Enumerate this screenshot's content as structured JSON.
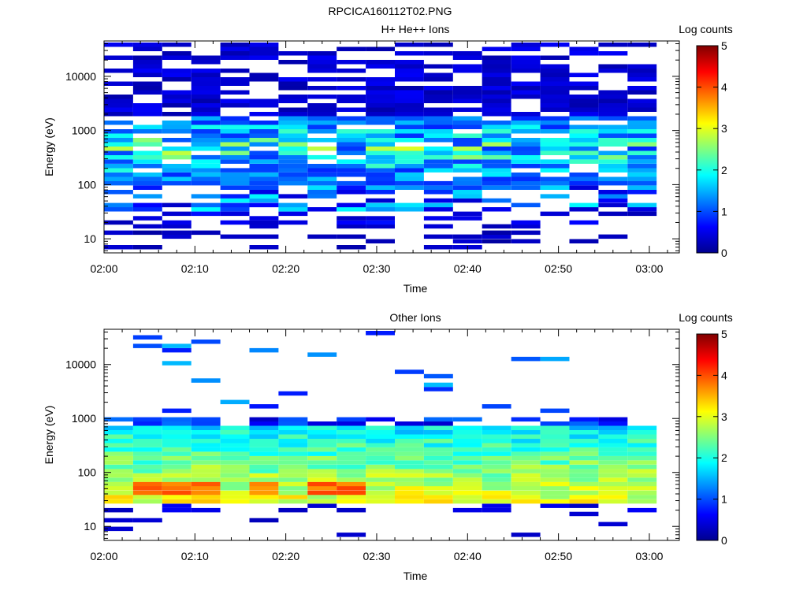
{
  "page_title": "RPCICA160112T02.PNG",
  "colors": {
    "colormap": [
      "#00008f",
      "#0000ff",
      "#00ffff",
      "#ffff00",
      "#ff0000",
      "#800000"
    ],
    "axis": "#000000",
    "background": "#ffffff"
  },
  "chart_data": [
    {
      "type": "heatmap",
      "title": "H+ He++ Ions",
      "xlabel": "Time",
      "ylabel": "Energy (eV)",
      "yscale": "log",
      "ylim": [
        5.5,
        45000
      ],
      "xticks": [
        "02:00",
        "02:10",
        "02:20",
        "02:30",
        "02:40",
        "02:50",
        "03:00"
      ],
      "xtick_minutes": [
        0,
        10,
        20,
        30,
        40,
        50,
        60
      ],
      "xlim_minutes": [
        0,
        63.3
      ],
      "yticks": [
        {
          "value": 10,
          "label": "10"
        },
        {
          "value": 100,
          "label": "100"
        },
        {
          "value": 1000,
          "label": "1000"
        },
        {
          "value": 10000,
          "label": "10000"
        }
      ],
      "colorbar": {
        "label": "Log counts",
        "min": 0,
        "max": 5,
        "ticks": [
          "0",
          "1",
          "2",
          "3",
          "4",
          "5"
        ]
      },
      "columns_start_minutes": [
        0,
        3.2,
        6.4,
        9.6,
        12.8,
        16.0,
        19.2,
        22.4,
        25.6,
        28.8,
        32.0,
        35.2,
        38.4,
        41.6,
        44.8,
        48.0,
        51.2,
        54.4,
        57.6
      ],
      "column_width_minutes": 3.2,
      "energy_bins_eV": [
        7,
        9,
        11,
        13,
        17,
        20,
        24,
        29,
        35,
        42,
        51,
        61,
        73,
        88,
        106,
        127,
        153,
        184,
        221,
        266,
        320,
        384,
        462,
        555,
        668,
        803,
        965,
        1160,
        1395,
        1677,
        2016,
        2424,
        2914,
        3503,
        4211,
        5062,
        6086,
        7316,
        8795,
        10573,
        12710,
        15279,
        18368,
        22081,
        26545,
        31911,
        38361
      ],
      "bin_half_width_log10": 0.04,
      "seed": 7,
      "profile": "hplus"
    },
    {
      "type": "heatmap",
      "title": "Other Ions",
      "xlabel": "Time",
      "ylabel": "Energy (eV)",
      "yscale": "log",
      "ylim": [
        5.5,
        45000
      ],
      "xticks": [
        "02:00",
        "02:10",
        "02:20",
        "02:30",
        "02:40",
        "02:50",
        "03:00"
      ],
      "xtick_minutes": [
        0,
        10,
        20,
        30,
        40,
        50,
        60
      ],
      "xlim_minutes": [
        0,
        63.3
      ],
      "yticks": [
        {
          "value": 10,
          "label": "10"
        },
        {
          "value": 100,
          "label": "100"
        },
        {
          "value": 1000,
          "label": "1000"
        },
        {
          "value": 10000,
          "label": "10000"
        }
      ],
      "colorbar": {
        "label": "Log counts",
        "min": 0,
        "max": 5,
        "ticks": [
          "0",
          "1",
          "2",
          "3",
          "4",
          "5"
        ]
      },
      "columns_start_minutes": [
        0,
        3.2,
        6.4,
        9.6,
        12.8,
        16.0,
        19.2,
        22.4,
        25.6,
        28.8,
        32.0,
        35.2,
        38.4,
        41.6,
        44.8,
        48.0,
        51.2,
        54.4,
        57.6
      ],
      "column_width_minutes": 3.2,
      "energy_bins_eV": [
        7,
        9,
        11,
        13,
        17,
        20,
        24,
        29,
        35,
        42,
        51,
        61,
        73,
        88,
        106,
        127,
        153,
        184,
        221,
        266,
        320,
        384,
        462,
        555,
        668,
        803,
        965,
        1160,
        1395,
        1677,
        2016,
        2424,
        2914,
        3503,
        4211,
        5062,
        6086,
        7316,
        8795,
        10573,
        12710,
        15279,
        18368,
        22081,
        26545,
        31911,
        38361
      ],
      "bin_half_width_log10": 0.04,
      "seed": 19,
      "profile": "other",
      "peak_columns": [
        1,
        2,
        3,
        5,
        7,
        8
      ]
    }
  ]
}
